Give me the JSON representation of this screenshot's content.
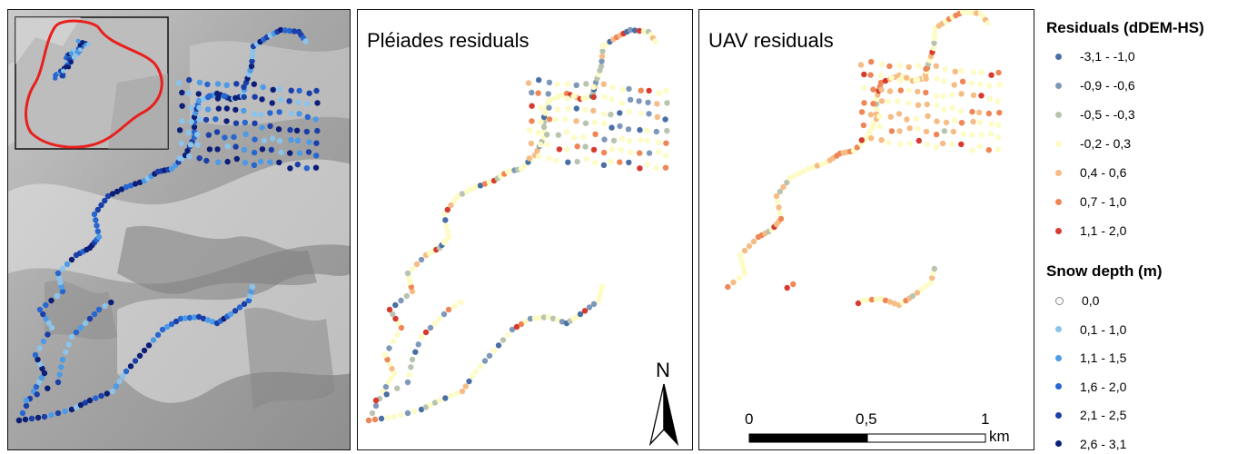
{
  "panels": {
    "pleiades": {
      "title": "Pléiades residuals"
    },
    "uav": {
      "title": "UAV residuals"
    }
  },
  "legend_residuals": {
    "heading": "Residuals (dDEM-HS)",
    "classes": [
      {
        "label": "-3,1 - -1,0",
        "color": "#4a6fa5"
      },
      {
        "label": "-0,9 - -0,6",
        "color": "#7d98b8"
      },
      {
        "label": "-0,5 - -0,3",
        "color": "#b9c4b0"
      },
      {
        "label": "-0,2 - 0,3",
        "color": "#fdfcc6"
      },
      {
        "label": "0,4 - 0,6",
        "color": "#f6bc85"
      },
      {
        "label": "0,7 - 1,0",
        "color": "#ef8656"
      },
      {
        "label": "1,1 - 2,0",
        "color": "#d73a2e"
      }
    ]
  },
  "legend_snow": {
    "heading": "Snow depth (m)",
    "classes": [
      {
        "label": "0,0",
        "color": "#ffffff"
      },
      {
        "label": "0,1 - 1,0",
        "color": "#8cc3ea"
      },
      {
        "label": "1,1 - 1,5",
        "color": "#4d9ae6"
      },
      {
        "label": "1,6 - 2,0",
        "color": "#2666d0"
      },
      {
        "label": "2,1 - 2,5",
        "color": "#1a3fa8"
      },
      {
        "label": "2,6 - 3,1",
        "color": "#0c1f78"
      }
    ]
  },
  "scale_bar": {
    "tick_0": "0",
    "tick_mid": "0,5",
    "tick_end": "1",
    "unit": "km"
  },
  "north_arrow": {
    "label": "N"
  },
  "colors": {
    "inset_outline": "#e8201e",
    "frame": "#111111",
    "hillshade_base": "#a9a9a9"
  }
}
